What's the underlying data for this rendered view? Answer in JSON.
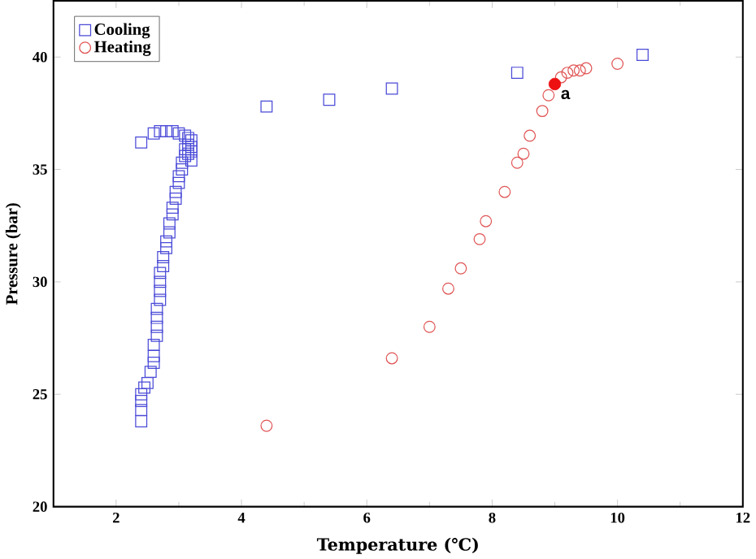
{
  "chart_data": {
    "type": "scatter",
    "xlabel": "Temperature (℃)",
    "ylabel": "Pressure (bar)",
    "xlim": [
      1,
      12
    ],
    "ylim": [
      20,
      42.5
    ],
    "xticks": [
      2,
      4,
      6,
      8,
      10,
      12
    ],
    "yticks": [
      20,
      25,
      30,
      35,
      40
    ],
    "grid": false,
    "legend": "top left",
    "series": [
      {
        "name": "Cooling",
        "color": "#4a4ad8",
        "marker": "square",
        "x": [
          2.4,
          2.4,
          2.4,
          2.4,
          2.45,
          2.5,
          2.55,
          2.6,
          2.6,
          2.6,
          2.65,
          2.65,
          2.65,
          2.65,
          2.7,
          2.7,
          2.7,
          2.7,
          2.75,
          2.75,
          2.8,
          2.8,
          2.85,
          2.85,
          2.9,
          2.9,
          2.95,
          2.95,
          3.0,
          3.0,
          3.05,
          3.05,
          3.1,
          3.1,
          3.15,
          3.15,
          3.2,
          3.2,
          3.2,
          3.2,
          3.15,
          3.1,
          3.0,
          2.9,
          2.8,
          2.7,
          2.6,
          2.4,
          4.4,
          5.4,
          6.4,
          8.4,
          10.4
        ],
        "values": [
          23.8,
          24.3,
          24.7,
          25.0,
          25.3,
          25.5,
          26.0,
          26.4,
          26.7,
          27.2,
          27.6,
          28.0,
          28.4,
          28.8,
          29.2,
          29.6,
          30.0,
          30.4,
          30.7,
          31.1,
          31.5,
          31.8,
          32.2,
          32.6,
          33.0,
          33.3,
          33.7,
          34.0,
          34.4,
          34.7,
          35.0,
          35.3,
          35.6,
          35.9,
          36.1,
          35.7,
          35.4,
          35.8,
          36.0,
          36.3,
          36.4,
          36.5,
          36.6,
          36.7,
          36.7,
          36.7,
          36.6,
          36.2,
          37.8,
          38.1,
          38.6,
          39.3,
          40.1
        ]
      },
      {
        "name": "Heating",
        "color": "#e05555",
        "marker": "circle",
        "x": [
          4.4,
          6.4,
          7.0,
          7.3,
          7.5,
          7.8,
          7.9,
          8.2,
          8.4,
          8.5,
          8.6,
          8.8,
          8.9,
          9.1,
          9.2,
          9.3,
          9.4,
          9.5,
          10.0
        ],
        "values": [
          23.6,
          26.6,
          28.0,
          29.7,
          30.6,
          31.9,
          32.7,
          34.0,
          35.3,
          35.7,
          36.5,
          37.6,
          38.3,
          39.1,
          39.3,
          39.4,
          39.4,
          39.5,
          39.7
        ]
      },
      {
        "color": "#ee1111",
        "marker": "circle",
        "x": [
          9.0
        ],
        "values": [
          38.8
        ]
      }
    ],
    "annotations": [
      {
        "text": "a",
        "x": 9.0,
        "y": 38.8
      }
    ]
  }
}
